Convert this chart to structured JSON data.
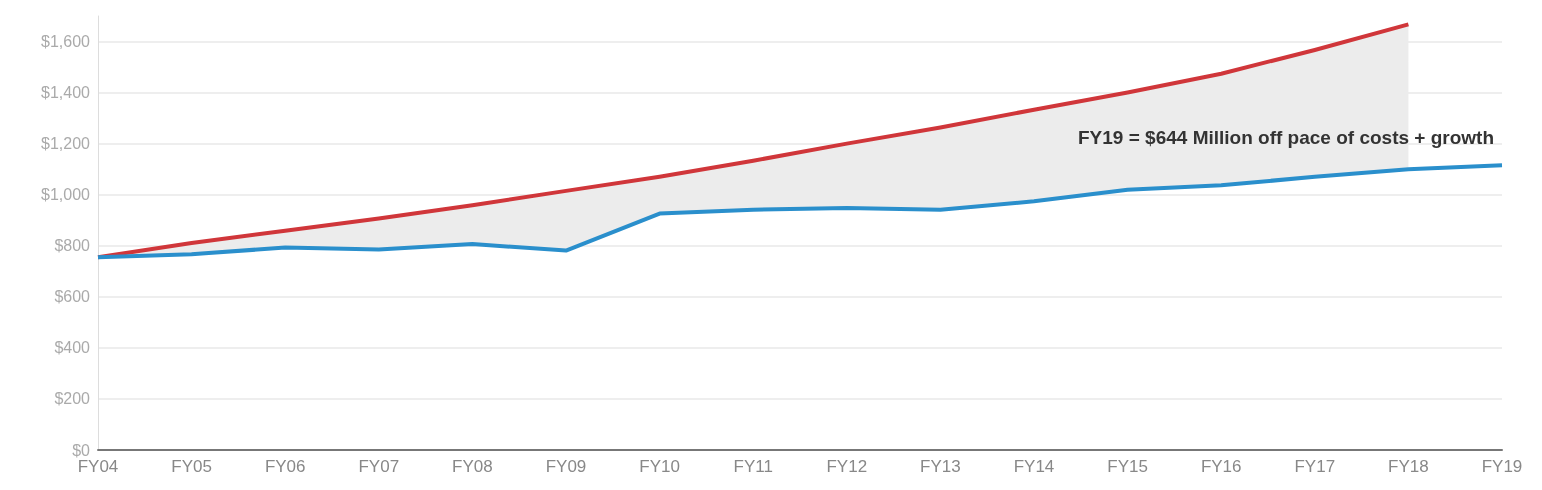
{
  "chart_data": {
    "type": "line",
    "categories": [
      "FY04",
      "FY05",
      "FY06",
      "FY07",
      "FY08",
      "FY09",
      "FY10",
      "FY11",
      "FY12",
      "FY13",
      "FY14",
      "FY15",
      "FY16",
      "FY17",
      "FY18",
      "FY19"
    ],
    "series": [
      {
        "color": "#d0363a",
        "values": [
          755,
          811,
          859,
          907,
          959,
          1015,
          1070,
          1133,
          1200,
          1263,
          1333,
          1400,
          1474,
          1567,
          1667,
          null
        ],
        "lower": [
          755,
          767,
          793,
          785,
          807,
          781,
          926,
          941,
          948,
          941,
          974,
          1019,
          1037,
          1070,
          1100,
          null
        ],
        "upper": [
          755,
          811,
          859,
          907,
          959,
          1015,
          1070,
          1133,
          1200,
          1263,
          1333,
          1400,
          1474,
          1567,
          1667,
          null
        ]
      },
      {
        "color": "#2a8fcc",
        "values": [
          755,
          767,
          793,
          785,
          807,
          781,
          926,
          941,
          948,
          941,
          974,
          1019,
          1037,
          1070,
          1100,
          1115
        ]
      }
    ],
    "ylim": [
      0,
      1700
    ],
    "yticks": [
      {
        "value": 0,
        "label": "$0"
      },
      {
        "value": 200,
        "label": "$200"
      },
      {
        "value": 400,
        "label": "$400"
      },
      {
        "value": 600,
        "label": "$600"
      },
      {
        "value": 800,
        "label": "$800"
      },
      {
        "value": 1000,
        "label": "$1,000"
      },
      {
        "value": 1200,
        "label": "$1,200"
      },
      {
        "value": 1400,
        "label": "$1,400"
      },
      {
        "value": 1600,
        "label": "$1,600"
      }
    ],
    "grid": "y",
    "marker": "none",
    "line_style": "solid",
    "annotations": [
      "FY19 = $644 Million off pace of costs + growth"
    ]
  }
}
